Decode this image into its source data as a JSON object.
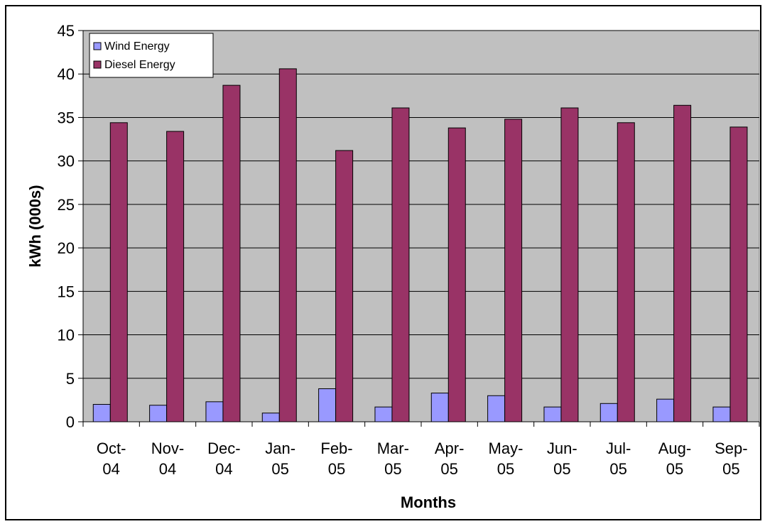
{
  "chart_data": {
    "type": "bar",
    "title": "",
    "xlabel": "Months",
    "ylabel": "kWh (000s)",
    "ylim": [
      0,
      45
    ],
    "yticks": [
      0,
      5,
      10,
      15,
      20,
      25,
      30,
      35,
      40,
      45
    ],
    "grid": true,
    "legend_position": "top-left",
    "categories": [
      [
        "Oct-",
        "04"
      ],
      [
        "Nov-",
        "04"
      ],
      [
        "Dec-",
        "04"
      ],
      [
        "Jan-",
        "05"
      ],
      [
        "Feb-",
        "05"
      ],
      [
        "Mar-",
        "05"
      ],
      [
        "Apr-",
        "05"
      ],
      [
        "May-",
        "05"
      ],
      [
        "Jun-",
        "05"
      ],
      [
        "Jul-",
        "05"
      ],
      [
        "Aug-",
        "05"
      ],
      [
        "Sep-",
        "05"
      ]
    ],
    "series": [
      {
        "name": "Wind Energy",
        "color": "#9999ff",
        "values": [
          2.0,
          1.9,
          2.3,
          1.0,
          3.8,
          1.7,
          3.3,
          3.0,
          1.7,
          2.1,
          2.6,
          1.7
        ]
      },
      {
        "name": "Diesel Energy",
        "color": "#993366",
        "values": [
          34.4,
          33.4,
          38.7,
          40.6,
          31.2,
          36.1,
          33.8,
          34.8,
          36.1,
          34.4,
          36.4,
          33.9
        ]
      }
    ],
    "plot_background": "#c0c0c0"
  }
}
